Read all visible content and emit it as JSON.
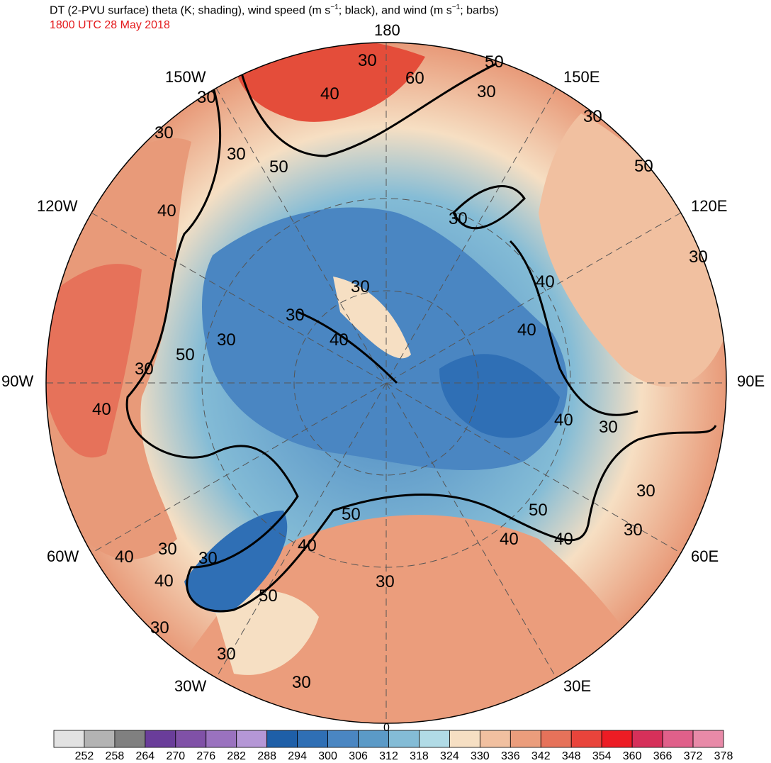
{
  "header": {
    "title_main": "DT (2-PVU surface) theta (K; shading), wind speed (m s",
    "title_sup1": "−1",
    "title_mid": "; black), and wind (m s",
    "title_sup2": "−1",
    "title_end": "; barbs)",
    "valid_time": "1800 UTC 28 May 2018"
  },
  "map": {
    "projection": "north-polar-stereographic",
    "longitude_labels": [
      "180",
      "150E",
      "120E",
      "90E",
      "60E",
      "30E",
      "0",
      "30W",
      "60W",
      "90W",
      "120W",
      "150W"
    ],
    "wind_speed_contour_labels": [
      "30",
      "40",
      "50",
      "60"
    ],
    "colors": {
      "cold_core": "#2f6fb5",
      "mid_blue": "#5b9ac7",
      "light_blue": "#a9d6e5",
      "warm_beige": "#f6dcc0",
      "warm_orange": "#e89a79",
      "hot_red": "#e44d3a",
      "contour": "#000000",
      "coastline": "#404040"
    }
  },
  "colorbar": {
    "labels": [
      "252",
      "258",
      "264",
      "270",
      "276",
      "282",
      "288",
      "294",
      "300",
      "306",
      "312",
      "318",
      "324",
      "330",
      "336",
      "342",
      "348",
      "354",
      "360",
      "366",
      "372",
      "378"
    ],
    "colors": [
      "#e2e2e2",
      "#b3b3b3",
      "#808080",
      "#6a3d9a",
      "#8051a7",
      "#9a72bf",
      "#b597d6",
      "#1e5fa8",
      "#2f6fb5",
      "#4a86c2",
      "#5b9ac7",
      "#84bcd6",
      "#b1dbe6",
      "#f6dfc3",
      "#f1c0a0",
      "#eb9d7c",
      "#e6725a",
      "#e9443b",
      "#ed1c24",
      "#d6305a",
      "#e0608a",
      "#e88aa8"
    ]
  }
}
